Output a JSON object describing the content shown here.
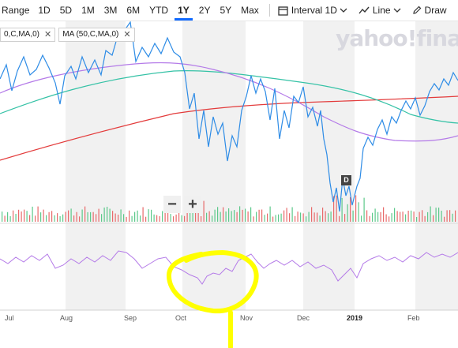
{
  "toolbar": {
    "range_label": "Range",
    "ranges": [
      "1D",
      "5D",
      "1M",
      "3M",
      "6M",
      "YTD",
      "1Y",
      "2Y",
      "5Y",
      "Max"
    ],
    "active_range": "1Y",
    "interval_label": "Interval",
    "interval_value": "1D",
    "line_label": "Line",
    "draw_label": "Draw"
  },
  "legend": {
    "items": [
      "0,C,MA,0)",
      "MA (50,C,MA,0)"
    ]
  },
  "watermark": "yahoo!fina",
  "zoom": {
    "minus": "−",
    "plus": "+"
  },
  "event_marker": "D",
  "x_axis": {
    "ticks": [
      {
        "label": "Jul",
        "x": 6,
        "strong": false
      },
      {
        "label": "Aug",
        "x": 76,
        "strong": false
      },
      {
        "label": "Sep",
        "x": 157,
        "strong": false
      },
      {
        "label": "Oct",
        "x": 222,
        "strong": false
      },
      {
        "label": "Nov",
        "x": 304,
        "strong": false
      },
      {
        "label": "Dec",
        "x": 376,
        "strong": false
      },
      {
        "label": "2019",
        "x": 439,
        "strong": true
      },
      {
        "label": "Feb",
        "x": 516,
        "strong": false
      }
    ]
  },
  "colors": {
    "price": "#2e8ce6",
    "ma_purple": "#b47ae8",
    "ma_teal": "#35c2a6",
    "ma_red": "#e33b3b",
    "shade": "#f1f1f1",
    "highlight": "#ffff00"
  }
}
